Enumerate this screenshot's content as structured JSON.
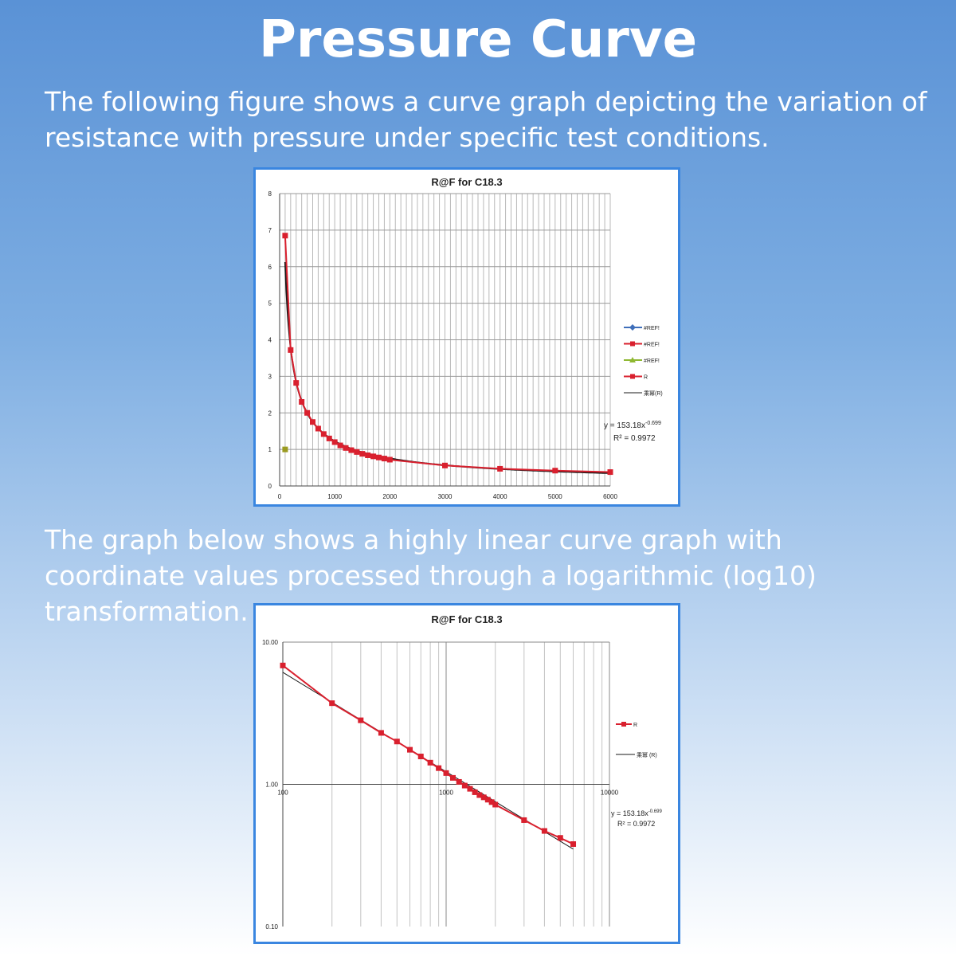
{
  "title": "Pressure Curve",
  "intro_text": "The following figure shows a curve graph depicting the variation of resistance with pressure under specific test conditions.",
  "log_text": "The graph below shows a highly linear curve graph with coordinate values processed through a logarithmic (log10) transformation.",
  "colors": {
    "accent_border": "#3a86e0",
    "series_red": "#d9202e",
    "fit_line": "#1a1a1a"
  },
  "chart_data": [
    {
      "type": "line",
      "title": "R@F  for C18.3",
      "xlim": [
        0,
        6000
      ],
      "ylim": [
        0,
        8
      ],
      "xticks": [
        "0",
        "1000",
        "2000",
        "3000",
        "4000",
        "5000",
        "6000"
      ],
      "yticks": [
        "0",
        "1",
        "2",
        "3",
        "4",
        "5",
        "6",
        "7",
        "8"
      ],
      "grid": true,
      "legend_position": "right",
      "legend": [
        "#REF!",
        "#REF!",
        "#REF!",
        "R",
        "乘幂(R)"
      ],
      "series": [
        {
          "name": "R",
          "color": "#d9202e",
          "x": [
            100,
            200,
            300,
            400,
            500,
            600,
            700,
            800,
            900,
            1000,
            1100,
            1200,
            1300,
            1400,
            1500,
            1600,
            1700,
            1800,
            1900,
            2000,
            3000,
            4000,
            5000,
            6000
          ],
          "y": [
            6.85,
            3.72,
            2.82,
            2.3,
            2.0,
            1.75,
            1.57,
            1.42,
            1.3,
            1.2,
            1.11,
            1.04,
            0.98,
            0.93,
            0.88,
            0.84,
            0.81,
            0.78,
            0.75,
            0.72,
            0.56,
            0.47,
            0.42,
            0.38
          ]
        },
        {
          "name": "#REF!",
          "color": "#9a9a20",
          "x": [
            100
          ],
          "y": [
            1.0
          ]
        }
      ],
      "trendline": {
        "type": "power",
        "a": 153.18,
        "b": -0.699
      },
      "equation": {
        "line1": "y = 153.18x",
        "exp": "-0.699",
        "line2": "R² = 0.9972"
      }
    },
    {
      "type": "line",
      "title": "R@F  for C18.3",
      "xscale": "log",
      "yscale": "log",
      "xlim": [
        100,
        10000
      ],
      "ylim": [
        0.1,
        10
      ],
      "xticks": [
        "100",
        "1000",
        "10000"
      ],
      "yticks": [
        "10.00",
        "1.00",
        "0.10"
      ],
      "grid": true,
      "legend_position": "right",
      "legend": [
        "R",
        "乘幂 (R)"
      ],
      "series": [
        {
          "name": "R",
          "color": "#d9202e",
          "x": [
            100,
            200,
            300,
            400,
            500,
            600,
            700,
            800,
            900,
            1000,
            1100,
            1200,
            1300,
            1400,
            1500,
            1600,
            1700,
            1800,
            1900,
            2000,
            3000,
            4000,
            5000,
            6000
          ],
          "y": [
            6.85,
            3.72,
            2.82,
            2.3,
            2.0,
            1.75,
            1.57,
            1.42,
            1.3,
            1.2,
            1.11,
            1.04,
            0.98,
            0.93,
            0.88,
            0.84,
            0.81,
            0.78,
            0.75,
            0.72,
            0.56,
            0.47,
            0.42,
            0.38
          ]
        }
      ],
      "trendline": {
        "type": "power",
        "a": 153.18,
        "b": -0.699
      },
      "equation": {
        "line1": "y = 153.18x",
        "exp": "-0.699",
        "line2": "R² = 0.9972"
      }
    }
  ]
}
